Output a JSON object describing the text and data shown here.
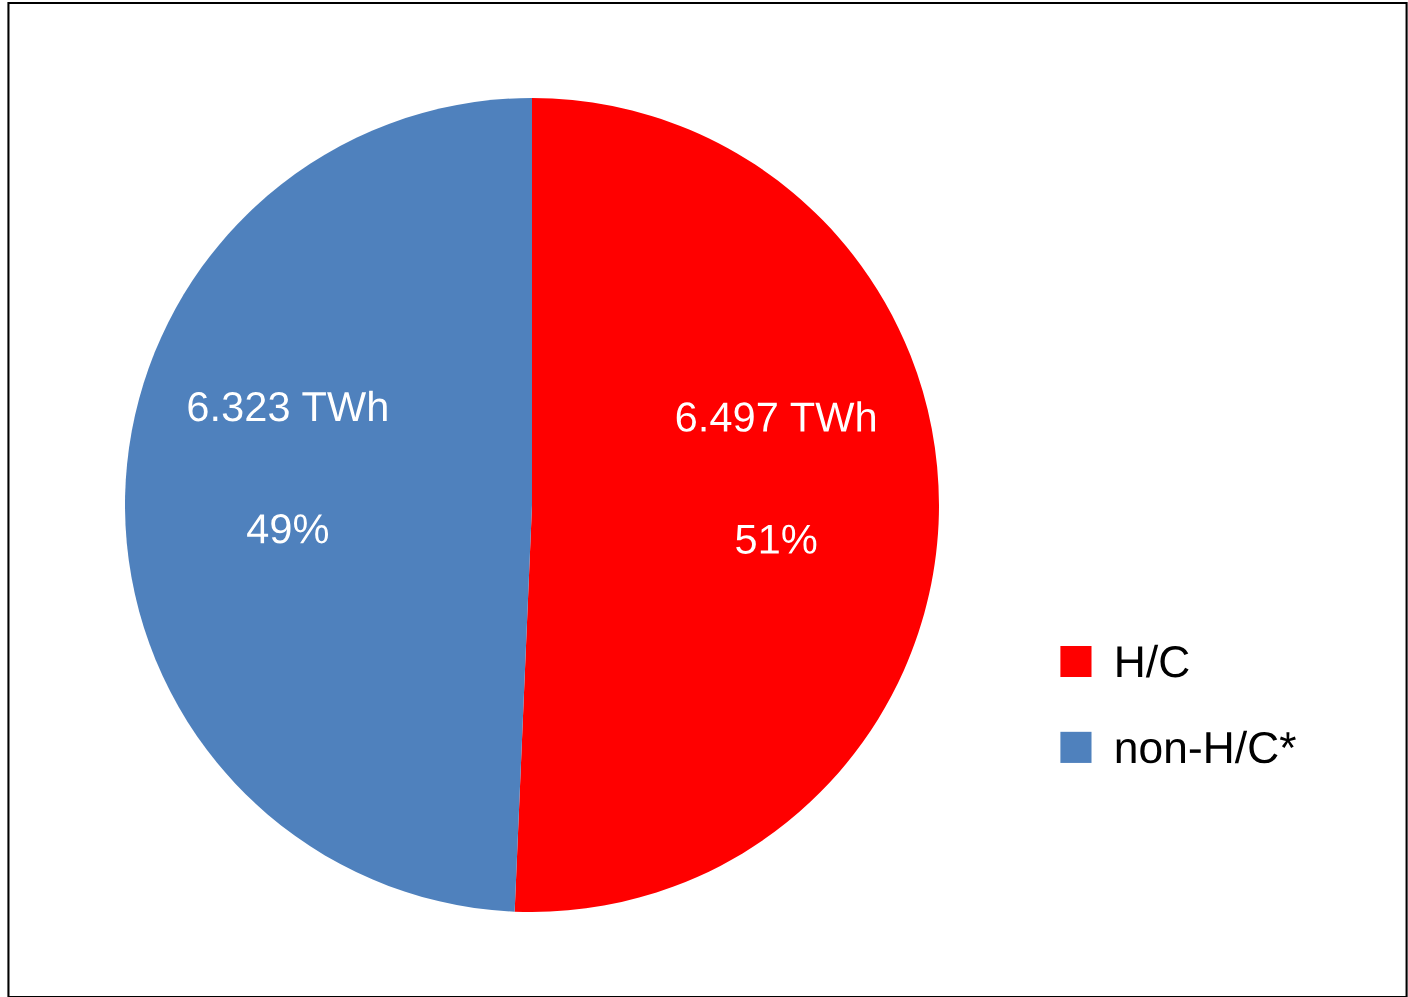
{
  "chart_data": {
    "type": "pie",
    "categories": [
      "H/C",
      "non-H/C*"
    ],
    "values": [
      6.497,
      6.323
    ],
    "colors": [
      "#ff0000",
      "#4f81bd"
    ],
    "value_labels": [
      "6.497 TWh",
      "6.323 TWh"
    ],
    "annotations": [
      "51%",
      "49%"
    ],
    "legend": "right"
  }
}
